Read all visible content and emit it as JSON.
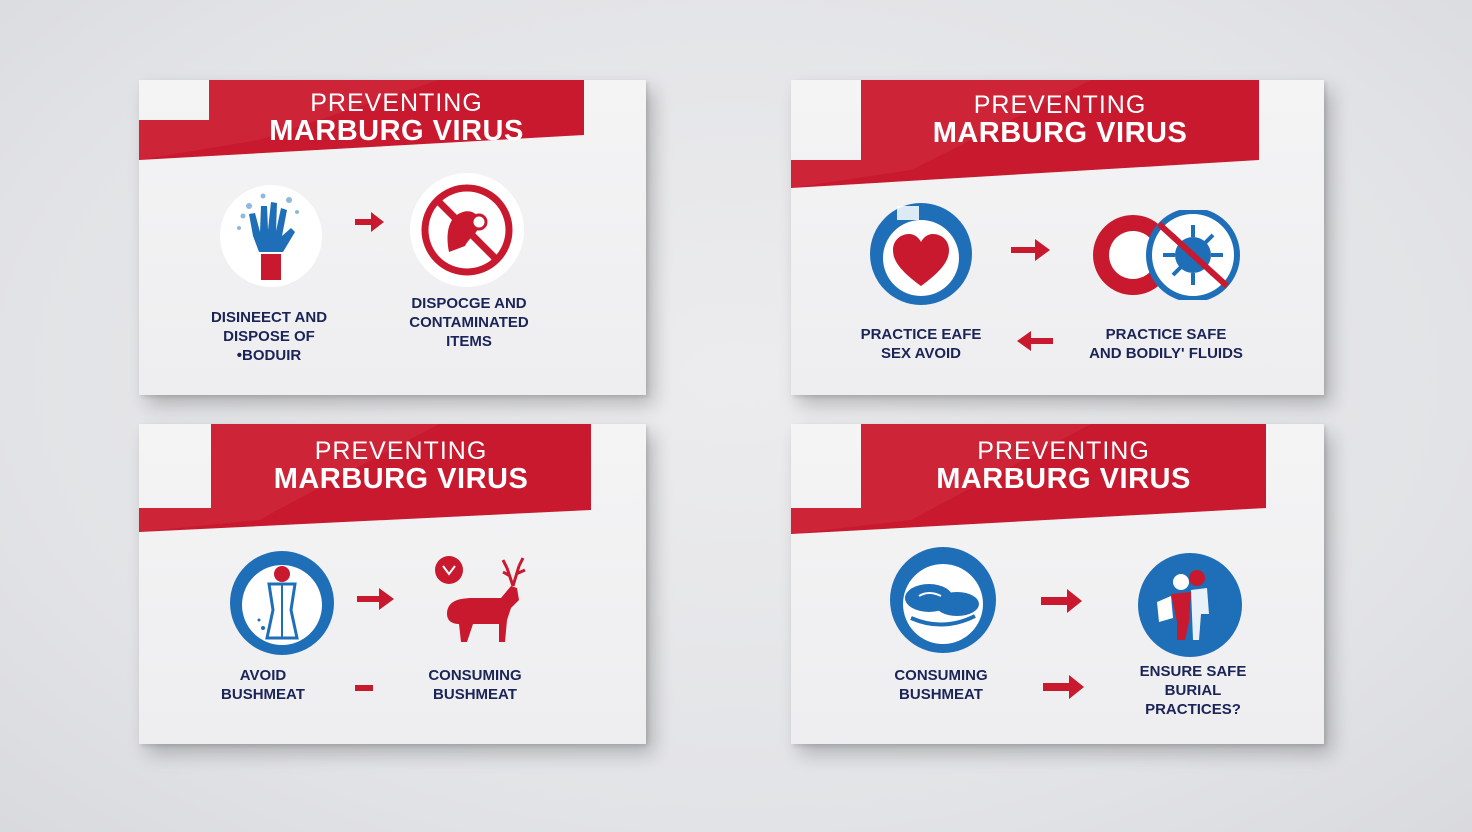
{
  "cards": [
    {
      "title_line1": "PREVENTING",
      "title_line2": "MARBURG VIRUS",
      "left_label": "DISINEECT AND\nDISPOSE OF\n•BODUIR",
      "right_label": "DISPOCGE AND\nCONTAMINATED\nITEMS",
      "left_icon": "gloved-hand-icon",
      "right_icon": "prohibited-contact-icon"
    },
    {
      "title_line1": "PREVENTING",
      "title_line2": "MARBURG VIRUS",
      "left_label": "PRACTICE EAFE\nSEX AVOID",
      "right_label": "PRACTICE SAFE\nAND BODILY' FLUIDS",
      "left_icon": "heart-icon",
      "right_icon": "no-virus-icon"
    },
    {
      "title_line1": "PREVENTING",
      "title_line2": "MARBURG VIRUS",
      "left_label": "AVOID\nBUSHMEAT",
      "right_label": "CONSUMING\nBUSHMEAT",
      "left_icon": "person-icon",
      "right_icon": "deer-icon"
    },
    {
      "title_line1": "PREVENTING",
      "title_line2": "MARBURG VIRUS",
      "left_label": "CONSUMING\nBUSHMEAT",
      "right_label": "ENSURE SAFE\nBURIAL\nPRACTICES?",
      "left_icon": "bushmeat-icon",
      "right_icon": "burial-workers-icon"
    }
  ],
  "colors": {
    "red": "#c8192e",
    "blue": "#1f6fb8",
    "navy": "#1b2456"
  }
}
